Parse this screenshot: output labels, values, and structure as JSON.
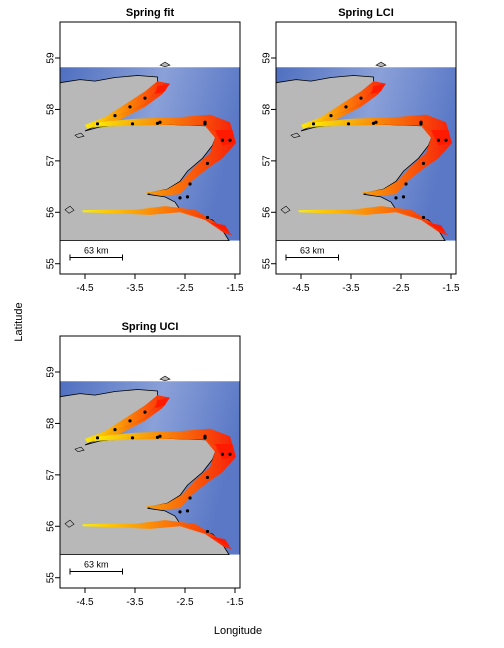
{
  "figure": {
    "xlabel": "Longitude",
    "ylabel": "Latitude",
    "colors": {
      "land": "#b8b8b8",
      "sea_deep": "#4f6fc0",
      "sea_shallow": "#c4d0ec",
      "fit_high": "#ff1a00",
      "fit_mid": "#ff8c00",
      "fit_low": "#ffee00",
      "survey_points": "#000000"
    }
  },
  "chart_data": [
    {
      "type": "heatmap",
      "title": "Spring fit",
      "xlim": [
        -5.0,
        -1.4
      ],
      "ylim": [
        54.8,
        59.7
      ],
      "x_ticks": [
        "-4.5",
        "-3.5",
        "-2.5",
        "-1.5"
      ],
      "y_ticks": [
        "55",
        "56",
        "57",
        "58",
        "59"
      ],
      "scale_bar": "63 km",
      "legend": "none",
      "grid": false
    },
    {
      "type": "heatmap",
      "title": "Spring LCI",
      "xlim": [
        -5.0,
        -1.4
      ],
      "ylim": [
        54.8,
        59.7
      ],
      "x_ticks": [
        "-4.5",
        "-3.5",
        "-2.5",
        "-1.5"
      ],
      "y_ticks": [
        "55",
        "56",
        "57",
        "58",
        "59"
      ],
      "scale_bar": "63 km",
      "legend": "none",
      "grid": false
    },
    {
      "type": "heatmap",
      "title": "Spring UCI",
      "xlim": [
        -5.0,
        -1.4
      ],
      "ylim": [
        54.8,
        59.7
      ],
      "x_ticks": [
        "-4.5",
        "-3.5",
        "-2.5",
        "-1.5"
      ],
      "y_ticks": [
        "55",
        "56",
        "57",
        "58",
        "59"
      ],
      "scale_bar": "63 km",
      "legend": "none",
      "grid": false
    }
  ]
}
